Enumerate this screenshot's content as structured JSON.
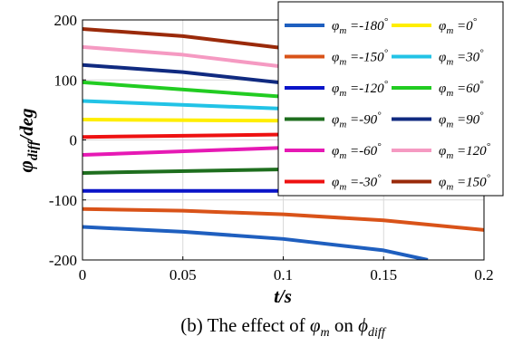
{
  "chart_data": {
    "type": "line",
    "xlabel": "t/s",
    "ylabel_main": "φ",
    "ylabel_sub": "diff",
    "ylabel_unit": "/deg",
    "caption_prefix": "(b) The effect of ",
    "caption_var1": "φ",
    "caption_var1_sub": "m",
    "caption_mid": " on ",
    "caption_var2": "ϕ",
    "caption_var2_sub": "diff",
    "xlim": [
      0,
      0.2
    ],
    "ylim": [
      -200,
      200
    ],
    "xticks": [
      "0",
      "0.05",
      "0.1",
      "0.15",
      "0.2"
    ],
    "yticks": [
      "-200",
      "-100",
      "0",
      "100",
      "200"
    ],
    "grid": true,
    "legend_placement": "top-right",
    "series": [
      {
        "name": "-180",
        "color": "#1f5fbf",
        "x": [
          0,
          0.05,
          0.1,
          0.15,
          0.172
        ],
        "y": [
          -145,
          -153,
          -165,
          -184,
          -200
        ]
      },
      {
        "name": "-150",
        "color": "#d95319",
        "x": [
          0,
          0.05,
          0.1,
          0.15,
          0.2
        ],
        "y": [
          -115,
          -118,
          -124,
          -134,
          -150
        ]
      },
      {
        "name": "-120",
        "color": "#0a14c8",
        "x": [
          0,
          0.1
        ],
        "y": [
          -85,
          -85
        ]
      },
      {
        "name": "0",
        "color": "#ffee00",
        "x": [
          0,
          0.1
        ],
        "y": [
          34,
          32
        ]
      },
      {
        "name": "-90",
        "color": "#1e6e1e",
        "x": [
          0,
          0.1
        ],
        "y": [
          -55,
          -49
        ]
      },
      {
        "name": "30",
        "color": "#22c3e6",
        "x": [
          0,
          0.1
        ],
        "y": [
          65,
          52
        ]
      },
      {
        "name": "-60",
        "color": "#e619b4",
        "x": [
          0,
          0.1
        ],
        "y": [
          -25,
          -13
        ]
      },
      {
        "name": "60",
        "color": "#22cc22",
        "x": [
          0,
          0.1
        ],
        "y": [
          96,
          72
        ]
      },
      {
        "name": "-30",
        "color": "#ee1111",
        "x": [
          0,
          0.1
        ],
        "y": [
          5,
          9
        ]
      },
      {
        "name": "90",
        "color": "#102a80",
        "x": [
          0,
          0.05,
          0.1
        ],
        "y": [
          125,
          113,
          95
        ]
      },
      {
        "name": "120",
        "color": "#f59ac2",
        "x": [
          0,
          0.05,
          0.1
        ],
        "y": [
          155,
          142,
          122
        ]
      },
      {
        "name": "150",
        "color": "#9a2a0a",
        "x": [
          0,
          0.05,
          0.1
        ],
        "y": [
          185,
          173,
          153
        ]
      }
    ],
    "legend_order": [
      "-180",
      "0",
      "-150",
      "30",
      "-120",
      "60",
      "-90",
      "90",
      "-60",
      "120",
      "-30",
      "150"
    ],
    "legend_label_prefix": "φ",
    "legend_label_sub": "m",
    "legend_label_eq": " =",
    "legend_label_deg": "°"
  }
}
